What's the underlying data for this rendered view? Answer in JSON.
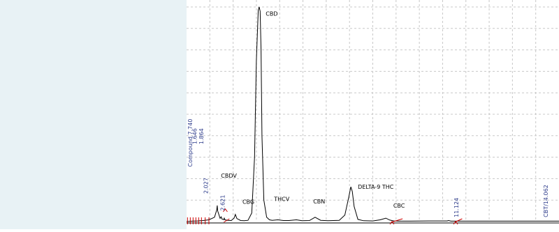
{
  "chart_data": {
    "type": "line",
    "title": "",
    "xlabel": "",
    "ylabel": "",
    "xlim": [
      0,
      20
    ],
    "ylim": [
      0,
      100
    ],
    "grid": true,
    "trace_color": "#000000",
    "grid_color": "#c8c8c8",
    "integration_color": "#cc0000",
    "annotation_color": "#2b3a8a",
    "trace": {
      "x": [
        0.0,
        0.3,
        0.6,
        0.9,
        1.2,
        1.5,
        1.62,
        1.646,
        1.67,
        1.8,
        1.86,
        1.9,
        2.0,
        2.027,
        2.06,
        2.2,
        2.4,
        2.55,
        2.621,
        2.7,
        2.9,
        3.1,
        3.3,
        3.5,
        3.65,
        3.75,
        3.85,
        3.9,
        3.95,
        4.0,
        4.05,
        4.15,
        4.3,
        4.45,
        4.6,
        4.9,
        5.2,
        5.5,
        5.9,
        6.2,
        6.6,
        6.9,
        7.2,
        7.6,
        7.9,
        8.2,
        8.5,
        8.7,
        8.82,
        8.9,
        9.0,
        9.2,
        9.5,
        10.0,
        10.4,
        10.7,
        10.9,
        11.124,
        11.4,
        12.0,
        13.0,
        14.0,
        14.062,
        14.2,
        15.0,
        16.0,
        17.0,
        18.0,
        19.0,
        20.0
      ],
      "y": [
        0.0,
        0.2,
        0.3,
        0.5,
        0.8,
        2.0,
        5.5,
        7.5,
        5.0,
        1.5,
        2.2,
        1.2,
        0.9,
        1.6,
        0.8,
        0.6,
        0.5,
        1.6,
        3.3,
        1.4,
        0.5,
        0.4,
        0.6,
        4.0,
        30.0,
        75.0,
        98.5,
        100.0,
        98.0,
        80.0,
        40.0,
        10.0,
        2.0,
        0.8,
        0.6,
        0.8,
        0.5,
        0.5,
        0.8,
        0.4,
        0.5,
        2.0,
        0.6,
        0.4,
        0.5,
        0.6,
        3.0,
        11.0,
        16.2,
        14.0,
        7.0,
        1.0,
        0.4,
        0.3,
        0.8,
        1.6,
        0.7,
        0.3,
        0.2,
        0.2,
        0.3,
        0.3,
        0.5,
        0.2,
        0.2,
        0.2,
        0.2,
        0.2,
        0.2,
        0.2
      ]
    },
    "peak_labels": [
      {
        "text": "CBD",
        "x": 4.25,
        "y": 96.0
      },
      {
        "text": "CBDV",
        "x": 1.85,
        "y": 20.5
      },
      {
        "text": "CBG",
        "x": 3.0,
        "y": 8.3
      },
      {
        "text": "THCV",
        "x": 4.7,
        "y": 9.5
      },
      {
        "text": "CBN",
        "x": 6.8,
        "y": 8.5
      },
      {
        "text": "DELTA-9 THC",
        "x": 9.2,
        "y": 15.3
      },
      {
        "text": "CBC",
        "x": 11.1,
        "y": 6.5
      }
    ],
    "retention_labels": [
      {
        "text": "1.646",
        "x": 0.55,
        "y": 36.0
      },
      {
        "text": "1.864",
        "x": 0.9,
        "y": 36.0
      },
      {
        "text": "Compound 7.740",
        "x": 0.3,
        "y": 25.5
      },
      {
        "text": "2.027",
        "x": 1.15,
        "y": 13.0
      },
      {
        "text": "2.621",
        "x": 2.05,
        "y": 5.0
      },
      {
        "text": "11.124",
        "x": 14.6,
        "y": 2.0
      },
      {
        "text": "CBT/14.062",
        "x": 19.4,
        "y": 2.0
      }
    ]
  }
}
